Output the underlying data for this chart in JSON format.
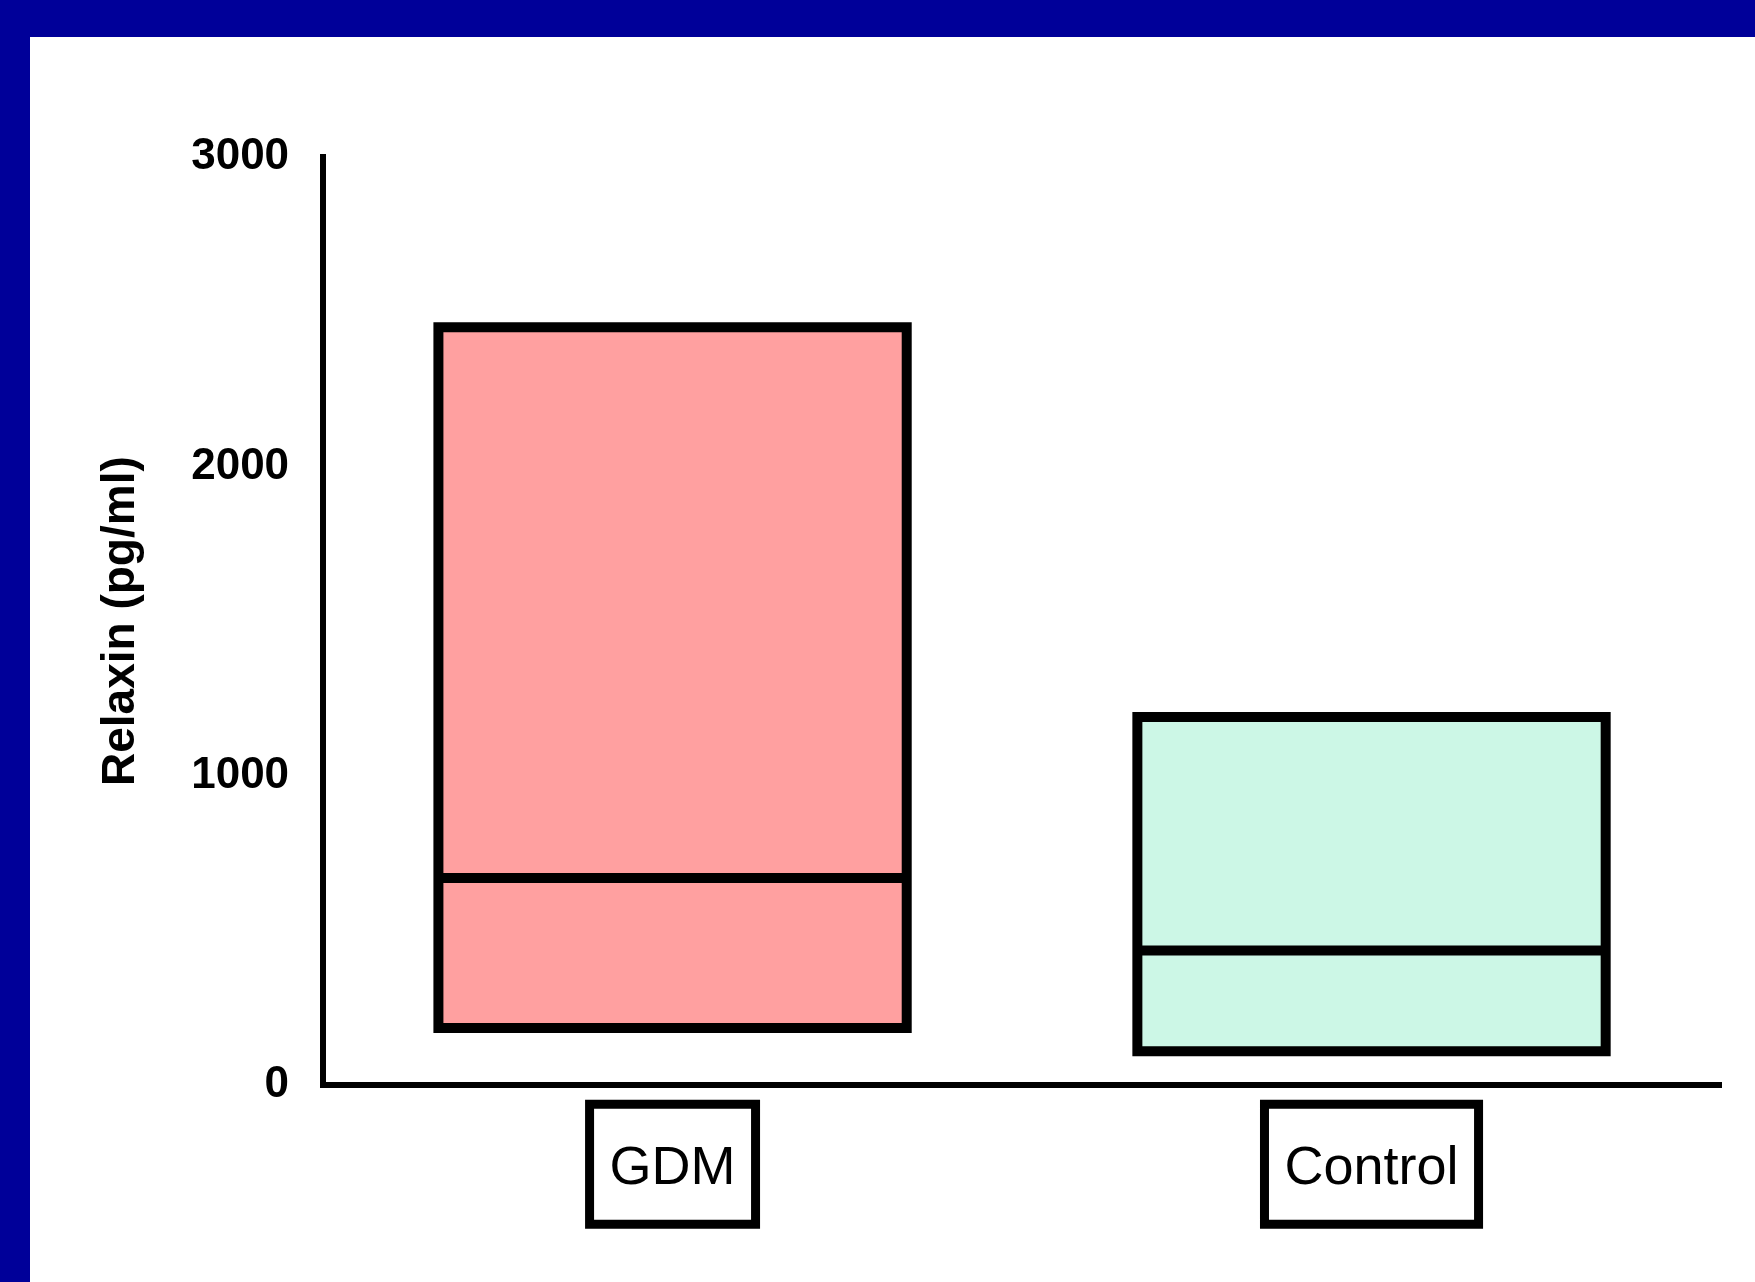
{
  "chart_data": {
    "type": "box",
    "ylabel": "Relaxin (pg/ml)",
    "categories": [
      "GDM",
      "Control"
    ],
    "boxes": [
      {
        "low": 185,
        "q1": 185,
        "median": 670,
        "q3": 2450,
        "high": 2450
      },
      {
        "low": 110,
        "q1": 110,
        "median": 435,
        "q3": 1190,
        "high": 1190
      }
    ],
    "colors": [
      "#ffa0a0",
      "#ccf7e6"
    ],
    "ylim": [
      0,
      3000
    ],
    "yticks": [
      0,
      1000,
      2000,
      3000
    ],
    "grid": false,
    "legend": false
  }
}
